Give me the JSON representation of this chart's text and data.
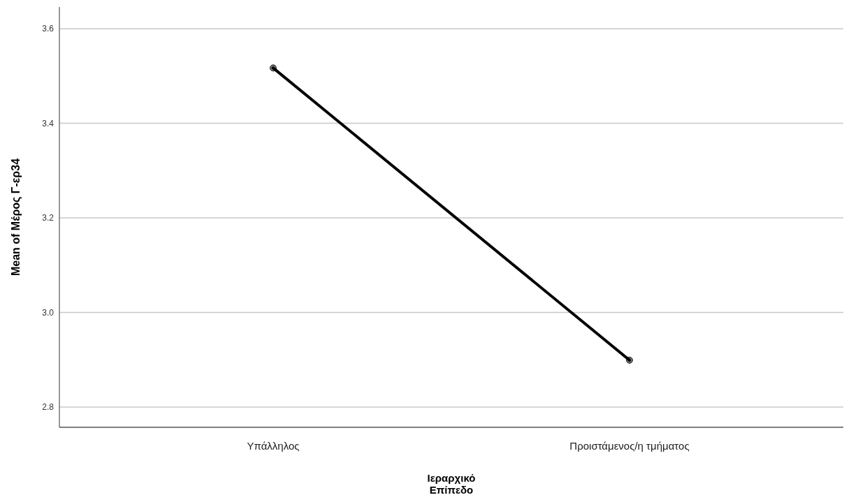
{
  "chart_data": {
    "type": "line",
    "xlabel": "Ιεραρχικό\nΕπίπεδο",
    "ylabel": "Mean of Μέρος Γ-ερ34",
    "categories": [
      "Υπάλληλος",
      "Προιστάμενος/η τμήματος"
    ],
    "series": [
      {
        "color": "#000000",
        "values": [
          3.517,
          2.899
        ]
      }
    ],
    "ylim": [
      2.757,
      3.646
    ],
    "yticks": [
      {
        "value": 2.8,
        "label": "2.8"
      },
      {
        "value": 3.0,
        "label": "3.0"
      },
      {
        "value": 3.2,
        "label": "3.2"
      },
      {
        "value": 3.4,
        "label": "3.4"
      },
      {
        "value": 3.6,
        "label": "3.6"
      }
    ],
    "grid": "y",
    "marker": "circle",
    "line_style": "solid"
  }
}
